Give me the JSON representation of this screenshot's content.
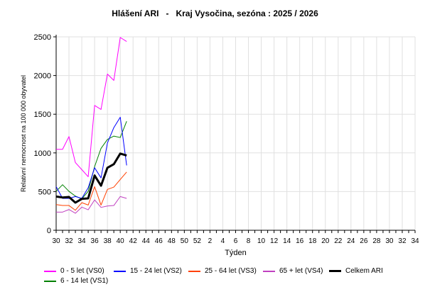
{
  "chart_data": {
    "type": "line",
    "title": "Hlášení ARI   -   Kraj Vysočina, sezóna : 2025 / 2026",
    "xlabel": "Týden",
    "ylabel": "Relativní nemocnost na 100 000 obyvatel",
    "ylim": [
      0,
      2500
    ],
    "yticks": [
      0,
      500,
      1000,
      1500,
      2000,
      2500
    ],
    "weeks": [
      30,
      31,
      32,
      33,
      34,
      35,
      36,
      37,
      38,
      39,
      40,
      41,
      42,
      43,
      44,
      45,
      46,
      47,
      48,
      49,
      50,
      51,
      52,
      1,
      2,
      3,
      4,
      5,
      6,
      7,
      8,
      9,
      10,
      11,
      12,
      13,
      14,
      15,
      16,
      17,
      18,
      19,
      20,
      21,
      22,
      23,
      24,
      25,
      26,
      27,
      28,
      29,
      30,
      31,
      32,
      33,
      34
    ],
    "xtick_labels": [
      "30",
      "32",
      "34",
      "36",
      "38",
      "40",
      "42",
      "44",
      "46",
      "48",
      "50",
      "52",
      "2",
      "4",
      "6",
      "8",
      "10",
      "12",
      "14",
      "16",
      "18",
      "20",
      "22",
      "24",
      "26",
      "28",
      "30",
      "32",
      "34"
    ],
    "grid": true,
    "legend_position": "bottom",
    "series": [
      {
        "name": "0 - 5 let (VS0)",
        "color": "#ff00ff",
        "width": 1,
        "values": [
          1046,
          1046,
          1211,
          875,
          784,
          692,
          1613,
          1562,
          2019,
          1937,
          2492,
          2440
        ]
      },
      {
        "name": "15 - 24 let (VS2)",
        "color": "#0000ff",
        "width": 1,
        "values": [
          564,
          412,
          412,
          436,
          412,
          549,
          808,
          677,
          1128,
          1327,
          1461,
          839
        ]
      },
      {
        "name": "25 - 64 let (VS3)",
        "color": "#ff4000",
        "width": 1,
        "values": [
          332,
          320,
          320,
          259,
          357,
          326,
          564,
          326,
          528,
          558,
          656,
          753
        ]
      },
      {
        "name": "65 + let (VS4)",
        "color": "#c040c0",
        "width": 1,
        "values": [
          235,
          235,
          268,
          220,
          299,
          265,
          393,
          296,
          314,
          320,
          436,
          412
        ]
      },
      {
        "name": "Celkem ARI",
        "color": "#000000",
        "width": 3,
        "values": [
          436,
          424,
          430,
          357,
          406,
          412,
          708,
          576,
          808,
          854,
          991,
          967
        ]
      },
      {
        "name": "6 - 14 let (VS1)",
        "color": "#008000",
        "width": 1,
        "values": [
          503,
          589,
          503,
          442,
          406,
          503,
          823,
          1058,
          1174,
          1217,
          1199,
          1409
        ]
      }
    ]
  }
}
